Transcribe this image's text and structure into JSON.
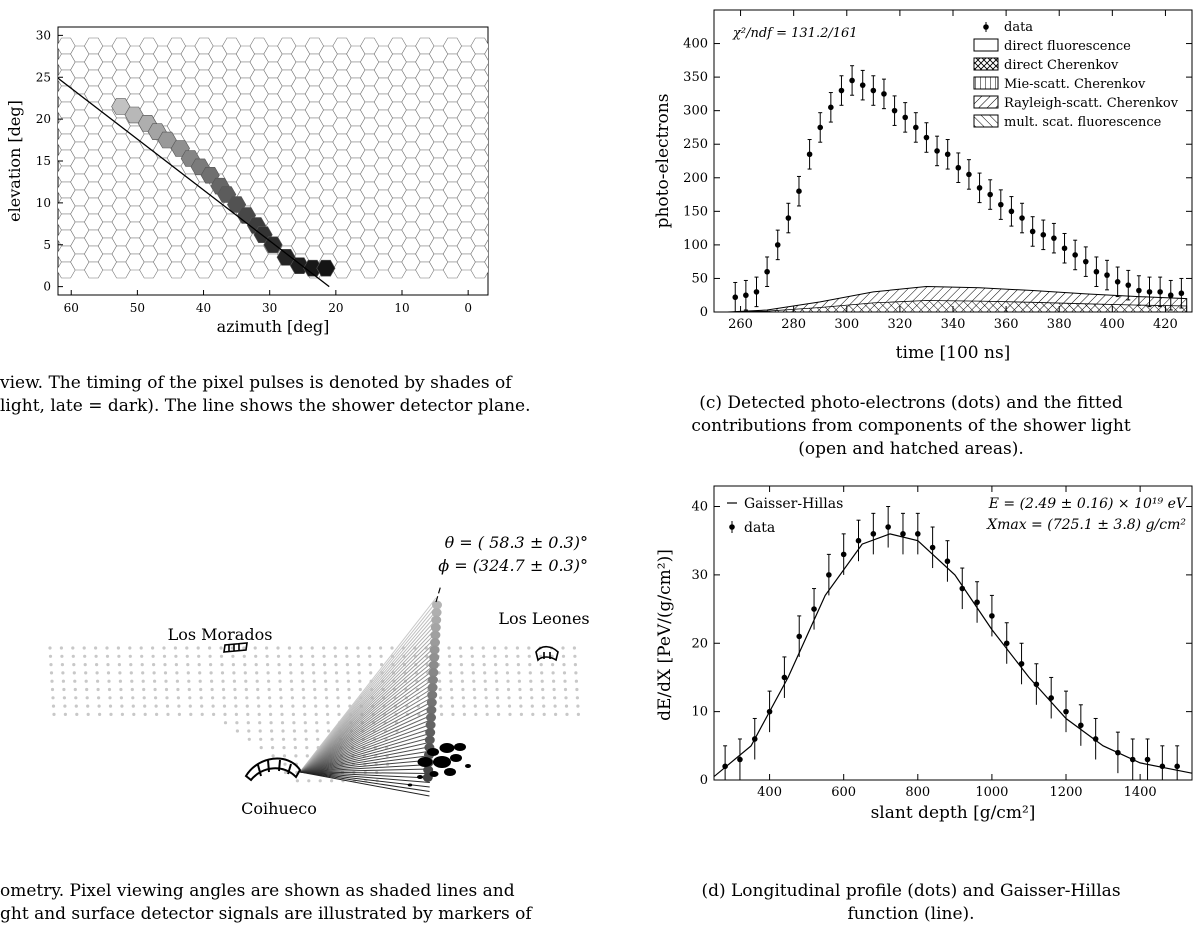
{
  "panel_a": {
    "chart_data": {
      "type": "scatter",
      "xlabel": "azimuth [deg]",
      "ylabel": "elevation [deg]",
      "xlim": [
        62,
        -3
      ],
      "ylim": [
        -1,
        31
      ],
      "x_ticks": [
        "60",
        "50",
        "40",
        "30",
        "20",
        "10",
        "0"
      ],
      "y_ticks": [
        "0",
        "5",
        "10",
        "15",
        "20",
        "25",
        "30"
      ],
      "shower_detector_plane": [
        {
          "x": 63,
          "y": 25.5
        },
        {
          "x": 21,
          "y": 0
        }
      ],
      "triggered_pixels": [
        {
          "az": 52.5,
          "el": 21.5,
          "t": 0.15
        },
        {
          "az": 50.5,
          "el": 20.5,
          "t": 0.2
        },
        {
          "az": 48.5,
          "el": 19.5,
          "t": 0.25
        },
        {
          "az": 47.0,
          "el": 18.5,
          "t": 0.3
        },
        {
          "az": 45.5,
          "el": 17.5,
          "t": 0.35
        },
        {
          "az": 43.5,
          "el": 16.5,
          "t": 0.4
        },
        {
          "az": 42.0,
          "el": 15.3,
          "t": 0.45
        },
        {
          "az": 40.5,
          "el": 14.3,
          "t": 0.5
        },
        {
          "az": 39.0,
          "el": 13.3,
          "t": 0.55
        },
        {
          "az": 37.5,
          "el": 12.0,
          "t": 0.6
        },
        {
          "az": 36.5,
          "el": 11.0,
          "t": 0.65
        },
        {
          "az": 35.0,
          "el": 9.8,
          "t": 0.7
        },
        {
          "az": 33.5,
          "el": 8.5,
          "t": 0.75
        },
        {
          "az": 32.0,
          "el": 7.3,
          "t": 0.8
        },
        {
          "az": 31.0,
          "el": 6.2,
          "t": 0.85
        },
        {
          "az": 29.5,
          "el": 5.0,
          "t": 0.88
        },
        {
          "az": 27.5,
          "el": 3.5,
          "t": 0.92
        },
        {
          "az": 25.5,
          "el": 2.5,
          "t": 0.95
        },
        {
          "az": 23.5,
          "el": 2.2,
          "t": 0.98
        },
        {
          "az": 21.5,
          "el": 2.2,
          "t": 1.0
        }
      ]
    },
    "caption": "view. The timing of the pixel pulses is denoted by shades of\nlight, late = dark). The line shows the shower detector plane."
  },
  "panel_b": {
    "theta_label": "θ = (  58.3 ± 0.3)°",
    "phi_label": "ϕ = (324.7 ± 0.3)°",
    "site_los_morados": "Los Morados",
    "site_los_leones": "Los Leones",
    "site_coihueco": "Coihueco",
    "caption": "ometry. Pixel viewing angles are shown as shaded lines and\nght and surface detector signals are illustrated by markers of"
  },
  "panel_c": {
    "chart_data": {
      "type": "scatter",
      "xlabel": "time [100 ns]",
      "ylabel": "photo-electrons",
      "xlim": [
        250,
        430
      ],
      "ylim": [
        0,
        450
      ],
      "x_ticks": [
        "260",
        "280",
        "300",
        "320",
        "340",
        "360",
        "380",
        "400",
        "420"
      ],
      "y_ticks": [
        "0",
        "50",
        "100",
        "150",
        "200",
        "250",
        "300",
        "350",
        "400"
      ],
      "annotation": "χ²/ndf = 131.2/161",
      "legend": [
        "data",
        "direct fluorescence",
        "direct Cherenkov",
        "Mie-scatt. Cherenkov",
        "Rayleigh-scatt. Cherenkov",
        "mult. scat. fluorescence"
      ],
      "series": [
        {
          "name": "data",
          "x": [
            258,
            262,
            266,
            270,
            274,
            278,
            282,
            286,
            290,
            294,
            298,
            302,
            306,
            310,
            314,
            318,
            322,
            326,
            330,
            334,
            338,
            342,
            346,
            350,
            354,
            358,
            362,
            366,
            370,
            374,
            378,
            382,
            386,
            390,
            394,
            398,
            402,
            406,
            410,
            414,
            418,
            422,
            426
          ],
          "y": [
            22,
            25,
            30,
            60,
            100,
            140,
            180,
            235,
            275,
            305,
            330,
            345,
            338,
            330,
            325,
            300,
            290,
            275,
            260,
            240,
            235,
            215,
            205,
            185,
            175,
            160,
            150,
            140,
            120,
            115,
            110,
            95,
            85,
            75,
            60,
            55,
            45,
            40,
            32,
            30,
            30,
            25,
            28
          ],
          "err": 22
        },
        {
          "name": "direct fluorescence",
          "x": [
            255,
            270,
            290,
            310,
            330,
            350,
            370,
            390,
            410,
            428
          ],
          "y": [
            0,
            3,
            15,
            30,
            38,
            36,
            32,
            27,
            23,
            20
          ]
        }
      ]
    },
    "caption": "(c) Detected photo-electrons (dots) and the fitted\ncontributions from components of the shower light\n(open and hatched areas)."
  },
  "panel_d": {
    "chart_data": {
      "type": "scatter",
      "xlabel": "slant depth [g/cm²]",
      "ylabel": "dE/dX [PeV/(g/cm²)]",
      "xlim": [
        250,
        1540
      ],
      "ylim": [
        0,
        43
      ],
      "x_ticks": [
        "400",
        "600",
        "800",
        "1000",
        "1200",
        "1400"
      ],
      "y_ticks": [
        "0",
        "10",
        "20",
        "30",
        "40"
      ],
      "legend": [
        "Gaisser-Hillas",
        "data"
      ],
      "annotation_energy": "E = (2.49 ± 0.16) × 10¹⁹ eV",
      "annotation_xmax": "Xmax = (725.1 ± 3.8) g/cm²",
      "series": [
        {
          "name": "data",
          "x": [
            280,
            320,
            360,
            400,
            440,
            480,
            520,
            560,
            600,
            640,
            680,
            720,
            760,
            800,
            840,
            880,
            920,
            960,
            1000,
            1040,
            1080,
            1120,
            1160,
            1200,
            1240,
            1280,
            1340,
            1380,
            1420,
            1460,
            1500
          ],
          "y": [
            2,
            3,
            6,
            10,
            15,
            21,
            25,
            30,
            33,
            35,
            36,
            37,
            36,
            36,
            34,
            32,
            28,
            26,
            24,
            20,
            17,
            14,
            12,
            10,
            8,
            6,
            4,
            3,
            3,
            2,
            2
          ],
          "err": 3
        },
        {
          "name": "Gaisser-Hillas",
          "x": [
            250,
            350,
            450,
            550,
            650,
            725,
            800,
            900,
            1000,
            1100,
            1200,
            1300,
            1400,
            1540
          ],
          "y": [
            0.5,
            5,
            15,
            27,
            34.5,
            36,
            35,
            30,
            22,
            15,
            9,
            5,
            2.5,
            1
          ]
        }
      ]
    },
    "caption": "(d) Longitudinal profile (dots) and Gaisser-Hillas\nfunction (line)."
  }
}
